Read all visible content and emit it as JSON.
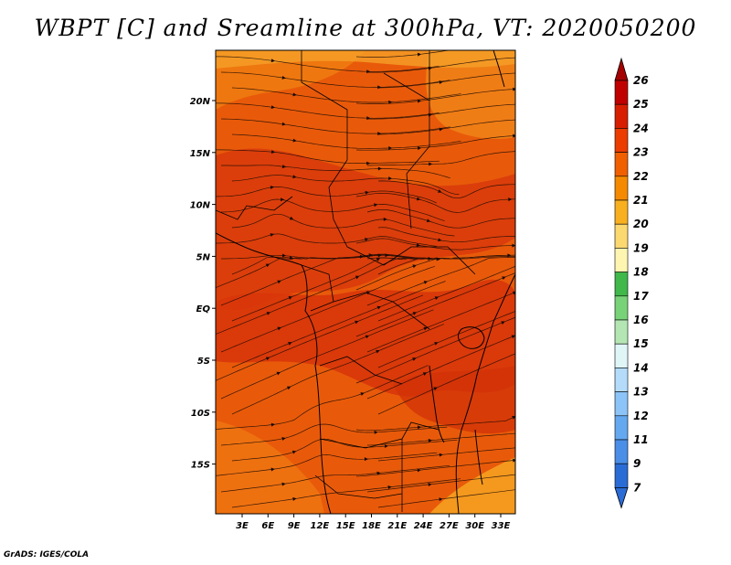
{
  "title": "WBPT [C] and Sreamline at 300hPa, VT: 2020050200",
  "credit": "GrADS: IGES/COLA",
  "map": {
    "lon_labels": [
      "3E",
      "6E",
      "9E",
      "12E",
      "15E",
      "18E",
      "21E",
      "24E",
      "27E",
      "30E",
      "33E"
    ],
    "lat_labels": [
      "20N",
      "15N",
      "10N",
      "5N",
      "EQ",
      "5S",
      "10S",
      "15S"
    ]
  },
  "colorbar": {
    "labels": [
      "26",
      "25",
      "24",
      "23",
      "22",
      "21",
      "20",
      "19",
      "18",
      "17",
      "16",
      "15",
      "14",
      "13",
      "12",
      "11",
      "9",
      "7"
    ],
    "colors": [
      "#a50000",
      "#c00000",
      "#d81e00",
      "#ec3c00",
      "#f06000",
      "#f58a00",
      "#f8b020",
      "#fcd870",
      "#fef5b0",
      "#40b84a",
      "#78d278",
      "#b4e6b4",
      "#e0f6f6",
      "#b4dcfa",
      "#8cc4f8",
      "#64a8f0",
      "#4a8ee8",
      "#2a6cd6"
    ]
  },
  "field": {
    "base_color": "#e85a0a",
    "warm_color": "#d8350a",
    "cool_color": "#f59a1a"
  }
}
